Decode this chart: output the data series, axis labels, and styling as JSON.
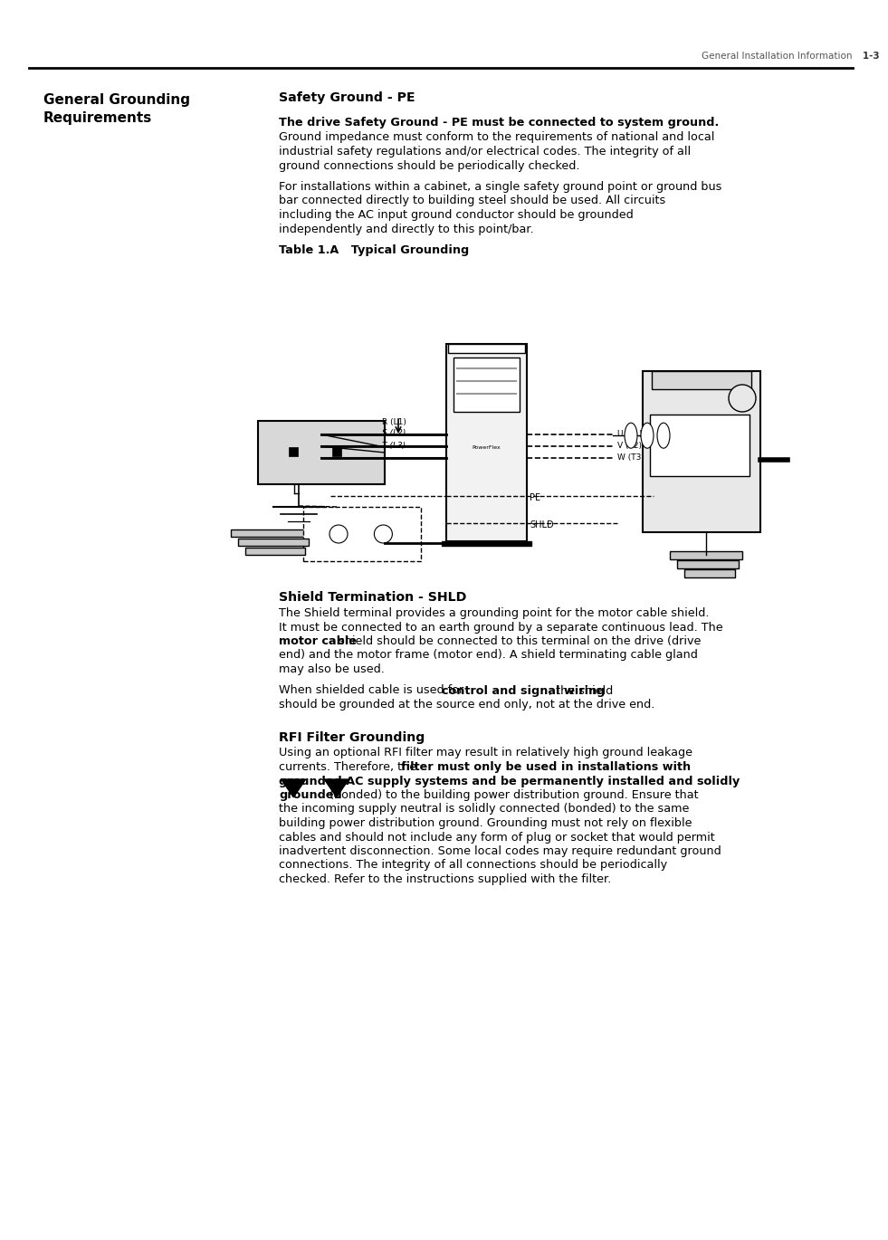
{
  "page_header_text": "General Installation Information",
  "page_number": "1-3",
  "left_title_line1": "General Grounding",
  "left_title_line2": "Requirements",
  "sec1_title": "Safety Ground - PE",
  "para1_bold": "The drive Safety Ground - PE must be connected to system ground.",
  "para1_normal_lines": [
    "Ground impedance must conform to the requirements of national and local",
    "industrial safety regulations and/or electrical codes. The integrity of all",
    "ground connections should be periodically checked."
  ],
  "para2_lines": [
    "For installations within a cabinet, a single safety ground point or ground bus",
    "bar connected directly to building steel should be used. All circuits",
    "including the AC input ground conductor should be grounded",
    "independently and directly to this point/bar."
  ],
  "table_caption": "Table 1.A   Typical Grounding",
  "sec2_title": "Shield Termination - SHLD",
  "para3_pre": "The Shield terminal provides a grounding point for the motor cable shield.\nIt must be connected to an earth ground by a separate continuous lead. The\n",
  "para3_bold": "motor cable",
  "para3_post": " shield should be connected to this terminal on the drive (drive\nend) and the motor frame (motor end). A shield terminating cable gland\nmay also be used.",
  "para4_pre": "When shielded cable is used for ",
  "para4_bold": "control and signal wiring",
  "para4_post": ", the shield\nshould be grounded at the source end only, not at the drive end.",
  "sec3_title": "RFI Filter Grounding",
  "para5_pre": "Using an optional RFI filter may result in relatively high ground leakage\ncurrents. Therefore, the ",
  "para5_bold": "filter must only be used in installations with\ngrounded AC supply systems and be permanently installed and solidly\ngrounded",
  "para5_post": " (bonded) to the building power distribution ground. Ensure that\nthe incoming supply neutral is solidly connected (bonded) to the same\nbuilding power distribution ground. Grounding must not rely on flexible\ncables and should not include any form of plug or socket that would permit\ninadvertent disconnection. Some local codes may require redundant ground\nconnections. The integrity of all connections should be periodically\nchecked. Refer to the instructions supplied with the filter.",
  "bg": "#ffffff",
  "fg": "#000000"
}
